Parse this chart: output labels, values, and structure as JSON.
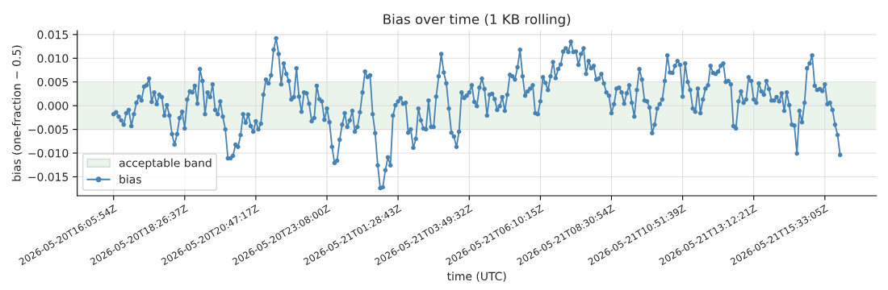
{
  "chart_data": {
    "type": "line",
    "title": "Bias over time (1 KB rolling)",
    "xlabel": "time (UTC)",
    "ylabel": "bias (one-fraction − 0.5)",
    "x": [
      "2026-05-20T16:05:54",
      "2026-05-20T16:10:55",
      "2026-05-20T16:15:57",
      "2026-05-20T16:20:58",
      "2026-05-20T16:26:00",
      "2026-05-20T16:31:01",
      "2026-05-20T16:36:03",
      "2026-05-20T16:41:04",
      "2026-05-20T16:46:06",
      "2026-05-20T16:51:07",
      "2026-05-20T16:56:09",
      "2026-05-20T17:01:10",
      "2026-05-20T17:06:12",
      "2026-05-20T17:11:13",
      "2026-05-20T17:16:15",
      "2026-05-20T17:21:16",
      "2026-05-20T17:26:18",
      "2026-05-20T17:31:19",
      "2026-05-20T17:36:21",
      "2026-05-20T17:41:22",
      "2026-05-20T17:46:24",
      "2026-05-20T17:51:25",
      "2026-05-20T17:56:27",
      "2026-05-20T18:01:28",
      "2026-05-20T18:06:30",
      "2026-05-20T18:11:31",
      "2026-05-20T18:16:33",
      "2026-05-20T18:21:34",
      "2026-05-20T18:26:37",
      "2026-05-20T18:31:38",
      "2026-05-20T18:36:40",
      "2026-05-20T18:41:41",
      "2026-05-20T18:46:43",
      "2026-05-20T18:51:44",
      "2026-05-20T18:56:46",
      "2026-05-20T19:01:47",
      "2026-05-20T19:06:49",
      "2026-05-20T19:11:50",
      "2026-05-20T19:16:52",
      "2026-05-20T19:21:53",
      "2026-05-20T19:26:55",
      "2026-05-20T19:31:56",
      "2026-05-20T19:36:58",
      "2026-05-20T19:41:59",
      "2026-05-20T19:47:01",
      "2026-05-20T19:52:02",
      "2026-05-20T19:57:04",
      "2026-05-20T20:02:05",
      "2026-05-20T20:07:07",
      "2026-05-20T20:12:08",
      "2026-05-20T20:17:10",
      "2026-05-20T20:22:11",
      "2026-05-20T20:27:13",
      "2026-05-20T20:32:14",
      "2026-05-20T20:37:16",
      "2026-05-20T20:42:17",
      "2026-05-20T20:47:17",
      "2026-05-20T20:52:18",
      "2026-05-20T20:57:20",
      "2026-05-20T21:02:21",
      "2026-05-20T21:07:23",
      "2026-05-20T21:12:24",
      "2026-05-20T21:17:26",
      "2026-05-20T21:22:27",
      "2026-05-20T21:27:29",
      "2026-05-20T21:32:30",
      "2026-05-20T21:37:32",
      "2026-05-20T21:42:33",
      "2026-05-20T21:47:35",
      "2026-05-20T21:52:36",
      "2026-05-20T21:57:38",
      "2026-05-20T22:02:39",
      "2026-05-20T22:07:41",
      "2026-05-20T22:12:42",
      "2026-05-20T22:17:44",
      "2026-05-20T22:22:45",
      "2026-05-20T22:27:47",
      "2026-05-20T22:32:48",
      "2026-05-20T22:37:50",
      "2026-05-20T22:42:51",
      "2026-05-20T22:47:53",
      "2026-05-20T22:52:54",
      "2026-05-20T22:57:56",
      "2026-05-20T23:02:57",
      "2026-05-20T23:08:00",
      "2026-05-20T23:13:01",
      "2026-05-20T23:18:03",
      "2026-05-20T23:23:04",
      "2026-05-20T23:28:06",
      "2026-05-20T23:33:07",
      "2026-05-20T23:38:09",
      "2026-05-20T23:43:10",
      "2026-05-20T23:48:12",
      "2026-05-20T23:53:13",
      "2026-05-20T23:58:15",
      "2026-05-21T00:03:16",
      "2026-05-21T00:08:18",
      "2026-05-21T00:13:19",
      "2026-05-21T00:18:21",
      "2026-05-21T00:23:22",
      "2026-05-21T00:28:24",
      "2026-05-21T00:33:25",
      "2026-05-21T00:38:27",
      "2026-05-21T00:43:28",
      "2026-05-21T00:48:30",
      "2026-05-21T00:53:31",
      "2026-05-21T00:58:33",
      "2026-05-21T01:03:34",
      "2026-05-21T01:08:36",
      "2026-05-21T01:13:37",
      "2026-05-21T01:18:39",
      "2026-05-21T01:23:40",
      "2026-05-21T01:28:43",
      "2026-05-21T01:33:44",
      "2026-05-21T01:38:46",
      "2026-05-21T01:43:47",
      "2026-05-21T01:48:49",
      "2026-05-21T01:53:50",
      "2026-05-21T01:58:52",
      "2026-05-21T02:03:53",
      "2026-05-21T02:08:55",
      "2026-05-21T02:13:56",
      "2026-05-21T02:18:58",
      "2026-05-21T02:23:59",
      "2026-05-21T02:29:01",
      "2026-05-21T02:34:02",
      "2026-05-21T02:39:04",
      "2026-05-21T02:44:05",
      "2026-05-21T02:49:07",
      "2026-05-21T02:54:08",
      "2026-05-21T02:59:10",
      "2026-05-21T03:04:11",
      "2026-05-21T03:09:13",
      "2026-05-21T03:14:14",
      "2026-05-21T03:19:16",
      "2026-05-21T03:24:17",
      "2026-05-21T03:29:19",
      "2026-05-21T03:34:20",
      "2026-05-21T03:39:22",
      "2026-05-21T03:44:23",
      "2026-05-21T03:49:32",
      "2026-05-21T03:54:33",
      "2026-05-21T03:59:35",
      "2026-05-21T04:04:36",
      "2026-05-21T04:09:38",
      "2026-05-21T04:14:39",
      "2026-05-21T04:19:41",
      "2026-05-21T04:24:42",
      "2026-05-21T04:29:44",
      "2026-05-21T04:34:45",
      "2026-05-21T04:39:47",
      "2026-05-21T04:44:48",
      "2026-05-21T04:49:50",
      "2026-05-21T04:54:51",
      "2026-05-21T04:59:53",
      "2026-05-21T05:04:54",
      "2026-05-21T05:09:56",
      "2026-05-21T05:14:57",
      "2026-05-21T05:19:59",
      "2026-05-21T05:25:00",
      "2026-05-21T05:30:02",
      "2026-05-21T05:35:03",
      "2026-05-21T05:40:05",
      "2026-05-21T05:45:06",
      "2026-05-21T05:50:08",
      "2026-05-21T05:55:09",
      "2026-05-21T06:00:11",
      "2026-05-21T06:05:12",
      "2026-05-21T06:10:15",
      "2026-05-21T06:15:16",
      "2026-05-21T06:20:18",
      "2026-05-21T06:25:19",
      "2026-05-21T06:30:21",
      "2026-05-21T06:35:22",
      "2026-05-21T06:40:24",
      "2026-05-21T06:45:25",
      "2026-05-21T06:50:27",
      "2026-05-21T06:55:28",
      "2026-05-21T07:00:30",
      "2026-05-21T07:05:31",
      "2026-05-21T07:10:33",
      "2026-05-21T07:15:34",
      "2026-05-21T07:20:36",
      "2026-05-21T07:25:37",
      "2026-05-21T07:30:39",
      "2026-05-21T07:35:40",
      "2026-05-21T07:40:42",
      "2026-05-21T07:45:43",
      "2026-05-21T07:50:45",
      "2026-05-21T07:55:46",
      "2026-05-21T08:00:48",
      "2026-05-21T08:05:49",
      "2026-05-21T08:10:51",
      "2026-05-21T08:15:52",
      "2026-05-21T08:20:54",
      "2026-05-21T08:25:55",
      "2026-05-21T08:30:54",
      "2026-05-21T08:35:55",
      "2026-05-21T08:40:57",
      "2026-05-21T08:45:58",
      "2026-05-21T08:51:00",
      "2026-05-21T08:56:01",
      "2026-05-21T09:01:03",
      "2026-05-21T09:06:04",
      "2026-05-21T09:11:06",
      "2026-05-21T09:16:07",
      "2026-05-21T09:21:09",
      "2026-05-21T09:26:10",
      "2026-05-21T09:31:12",
      "2026-05-21T09:36:13",
      "2026-05-21T09:41:15",
      "2026-05-21T09:46:16",
      "2026-05-21T09:51:18",
      "2026-05-21T09:56:19",
      "2026-05-21T10:01:21",
      "2026-05-21T10:06:22",
      "2026-05-21T10:11:24",
      "2026-05-21T10:16:25",
      "2026-05-21T10:21:27",
      "2026-05-21T10:26:28",
      "2026-05-21T10:31:30",
      "2026-05-21T10:36:31",
      "2026-05-21T10:41:33",
      "2026-05-21T10:46:34",
      "2026-05-21T10:51:39",
      "2026-05-21T10:56:40",
      "2026-05-21T11:01:42",
      "2026-05-21T11:06:43",
      "2026-05-21T11:11:45",
      "2026-05-21T11:16:46",
      "2026-05-21T11:21:48",
      "2026-05-21T11:26:49",
      "2026-05-21T11:31:51",
      "2026-05-21T11:36:52",
      "2026-05-21T11:41:54",
      "2026-05-21T11:46:55",
      "2026-05-21T11:51:57",
      "2026-05-21T11:56:58",
      "2026-05-21T12:02:00",
      "2026-05-21T12:07:01",
      "2026-05-21T12:12:03",
      "2026-05-21T12:17:04",
      "2026-05-21T12:22:06",
      "2026-05-21T12:27:07",
      "2026-05-21T12:32:09",
      "2026-05-21T12:37:10",
      "2026-05-21T12:42:12",
      "2026-05-21T12:47:13",
      "2026-05-21T12:52:15",
      "2026-05-21T12:57:16",
      "2026-05-21T13:02:18",
      "2026-05-21T13:07:19",
      "2026-05-21T13:12:21",
      "2026-05-21T13:17:22",
      "2026-05-21T13:22:24",
      "2026-05-21T13:27:25",
      "2026-05-21T13:32:27",
      "2026-05-21T13:37:28",
      "2026-05-21T13:42:30",
      "2026-05-21T13:47:31",
      "2026-05-21T13:52:33",
      "2026-05-21T13:57:34",
      "2026-05-21T14:02:36",
      "2026-05-21T14:07:37",
      "2026-05-21T14:12:39",
      "2026-05-21T14:17:40",
      "2026-05-21T14:22:42",
      "2026-05-21T14:27:43",
      "2026-05-21T14:32:45",
      "2026-05-21T14:37:46",
      "2026-05-21T14:42:48",
      "2026-05-21T14:47:49",
      "2026-05-21T14:52:51",
      "2026-05-21T14:57:52",
      "2026-05-21T15:02:54",
      "2026-05-21T15:07:55",
      "2026-05-21T15:12:57",
      "2026-05-21T15:17:58",
      "2026-05-21T15:23:00",
      "2026-05-21T15:28:01",
      "2026-05-21T15:33:05",
      "2026-05-21T15:38:06",
      "2026-05-21T15:43:08",
      "2026-05-21T15:48:09",
      "2026-05-21T15:53:11",
      "2026-05-21T15:58:12",
      "2026-05-21T16:03:14"
    ],
    "xlim": [
      "2026-05-20T14:54:02",
      "2026-05-21T17:15:06"
    ],
    "xticks": [
      {
        "value": "2026-05-20T16:05:54",
        "label": "2026-05-20T16:05:54Z"
      },
      {
        "value": "2026-05-20T18:26:37",
        "label": "2026-05-20T18:26:37Z"
      },
      {
        "value": "2026-05-20T20:47:17",
        "label": "2026-05-20T20:47:17Z"
      },
      {
        "value": "2026-05-20T23:08:00",
        "label": "2026-05-20T23:08:00Z"
      },
      {
        "value": "2026-05-21T01:28:43",
        "label": "2026-05-21T01:28:43Z"
      },
      {
        "value": "2026-05-21T03:49:32",
        "label": "2026-05-21T03:49:32Z"
      },
      {
        "value": "2026-05-21T06:10:15",
        "label": "2026-05-21T06:10:15Z"
      },
      {
        "value": "2026-05-21T08:30:54",
        "label": "2026-05-21T08:30:54Z"
      },
      {
        "value": "2026-05-21T10:51:39",
        "label": "2026-05-21T10:51:39Z"
      },
      {
        "value": "2026-05-21T13:12:21",
        "label": "2026-05-21T13:12:21Z"
      },
      {
        "value": "2026-05-21T15:33:05",
        "label": "2026-05-21T15:33:05Z"
      }
    ],
    "series": [
      {
        "name": "bias",
        "color": "#4682b4",
        "values": [
          -0.0018,
          -0.0014,
          -0.0023,
          -0.0031,
          -0.004,
          -0.0016,
          -0.0009,
          -0.0043,
          -0.0018,
          0.0006,
          0.0019,
          0.0011,
          0.004,
          0.0043,
          0.0057,
          0.0008,
          0.0028,
          0.0003,
          0.0023,
          0.0018,
          -0.0021,
          0.0001,
          -0.0021,
          -0.006,
          -0.0082,
          -0.006,
          -0.0026,
          -0.0013,
          -0.0048,
          0.0013,
          0.003,
          0.0028,
          0.0042,
          0.0004,
          0.0077,
          0.0052,
          -0.0018,
          0.0028,
          0.0018,
          0.0045,
          -0.0009,
          -0.0018,
          0.0009,
          -0.0023,
          -0.005,
          -0.0111,
          -0.0111,
          -0.0106,
          -0.0082,
          -0.0087,
          -0.0062,
          -0.0018,
          -0.0036,
          -0.0019,
          -0.0043,
          -0.0055,
          -0.0033,
          -0.005,
          -0.0038,
          0.0023,
          0.0055,
          0.0047,
          0.0064,
          0.0118,
          0.0142,
          0.0109,
          0.0045,
          0.0089,
          0.0067,
          0.0052,
          0.0013,
          0.0018,
          0.0079,
          0.0019,
          -0.0013,
          0.0028,
          0.0026,
          0.0004,
          -0.0033,
          -0.0026,
          0.0042,
          0.0014,
          0.0009,
          -0.003,
          -0.0006,
          -0.0035,
          -0.0087,
          -0.0121,
          -0.0116,
          -0.0072,
          -0.004,
          -0.0016,
          -0.0045,
          -0.0031,
          -0.0011,
          -0.0055,
          -0.0045,
          -0.0014,
          0.0028,
          0.0072,
          0.006,
          0.0064,
          -0.0018,
          -0.0058,
          -0.0126,
          -0.0174,
          -0.0172,
          -0.0136,
          -0.0109,
          -0.0126,
          -0.0021,
          0.0001,
          0.0009,
          0.0016,
          0.0004,
          0.0006,
          -0.0057,
          -0.005,
          -0.0089,
          -0.007,
          -0.0006,
          -0.0031,
          -0.0048,
          -0.005,
          0.0011,
          -0.0045,
          -0.0045,
          0.0019,
          0.0062,
          0.0109,
          0.007,
          0.0047,
          -0.0006,
          -0.0057,
          -0.0065,
          -0.0087,
          -0.0055,
          0.0028,
          0.0016,
          0.0021,
          0.0028,
          0.0043,
          0.0008,
          -0.0001,
          0.0038,
          0.0057,
          0.0035,
          -0.0021,
          0.0023,
          0.0025,
          0.0014,
          -0.0009,
          -0.0001,
          0.0018,
          -0.0011,
          0.0023,
          0.0065,
          0.0062,
          0.0055,
          0.0081,
          0.0118,
          0.0062,
          0.0021,
          0.003,
          0.0036,
          0.0043,
          -0.0016,
          -0.0018,
          0.0009,
          0.006,
          0.0048,
          0.0033,
          0.0062,
          0.0092,
          0.0058,
          0.0077,
          0.0087,
          0.0114,
          0.0121,
          0.0113,
          0.0135,
          0.0113,
          0.0114,
          0.0086,
          0.0109,
          0.0121,
          0.0067,
          0.0094,
          0.0079,
          0.0084,
          0.0055,
          0.0057,
          0.0067,
          0.0047,
          0.0028,
          0.0021,
          -0.0016,
          0.0003,
          0.0036,
          0.0038,
          0.0028,
          0.0004,
          0.0026,
          0.0043,
          0.0006,
          -0.0023,
          0.0033,
          0.0077,
          0.0055,
          0.0011,
          0.0009,
          -0.0004,
          -0.0058,
          -0.004,
          -0.0006,
          0.0003,
          0.0013,
          0.0052,
          0.0106,
          0.007,
          0.0069,
          0.0084,
          0.0094,
          0.0086,
          0.0019,
          0.0089,
          0.005,
          0.0033,
          -0.0006,
          -0.0013,
          0.0036,
          -0.0016,
          0.0013,
          0.0036,
          0.0043,
          0.0084,
          0.0069,
          0.0067,
          0.0072,
          0.0084,
          0.0089,
          0.005,
          0.0052,
          0.0045,
          -0.0043,
          -0.0048,
          0.0009,
          0.003,
          0.0006,
          0.0013,
          0.006,
          0.0052,
          0.0013,
          0.0006,
          0.0047,
          0.003,
          0.0023,
          0.0052,
          0.0035,
          0.0011,
          0.0011,
          0.0018,
          0.0009,
          0.0026,
          -0.0011,
          0.0028,
          0.0001,
          -0.004,
          -0.0042,
          -0.0101,
          -0.0011,
          -0.0035,
          0.0006,
          0.0079,
          0.0089,
          0.0106,
          0.0042,
          0.0033,
          0.0035,
          0.0031,
          0.0045,
          0.0003,
          0.0006,
          -0.0009,
          -0.004,
          -0.0062,
          -0.0104
        ]
      }
    ],
    "ylim": [
      -0.019,
      0.0158
    ],
    "yticks": [
      {
        "value": -0.015,
        "label": "−0.015"
      },
      {
        "value": -0.01,
        "label": "−0.010"
      },
      {
        "value": -0.005,
        "label": "−0.005"
      },
      {
        "value": 0,
        "label": "0.000"
      },
      {
        "value": 0.005,
        "label": "0.005"
      },
      {
        "value": 0.01,
        "label": "0.010"
      },
      {
        "value": 0.015,
        "label": "0.015"
      }
    ],
    "bands": [
      {
        "axis": "y",
        "from": -0.005,
        "to": 0.005,
        "label": "acceptable band",
        "color": "#ebf4eb"
      }
    ],
    "grid": true,
    "legend": "bottom left",
    "marker": "circle",
    "line_style": "solid"
  }
}
